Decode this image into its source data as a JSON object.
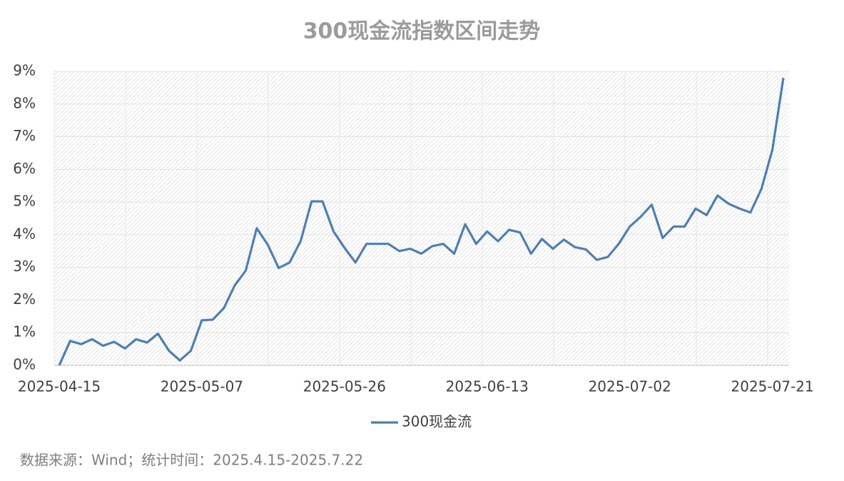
{
  "chart_data": {
    "type": "line",
    "title": "300现金流指数区间走势",
    "categories": [
      "2025-04-15",
      null,
      null,
      null,
      null,
      null,
      null,
      null,
      null,
      null,
      null,
      null,
      null,
      "2025-05-07",
      null,
      null,
      null,
      null,
      null,
      null,
      null,
      null,
      null,
      null,
      null,
      null,
      "2025-05-26",
      null,
      null,
      null,
      null,
      null,
      null,
      null,
      null,
      null,
      null,
      null,
      null,
      "2025-06-13",
      null,
      null,
      null,
      null,
      null,
      null,
      null,
      null,
      null,
      null,
      null,
      null,
      "2025-07-02",
      null,
      null,
      null,
      null,
      null,
      null,
      null,
      null,
      null,
      null,
      null,
      null,
      "2025-07-21",
      null
    ],
    "series": [
      {
        "name": "300现金流",
        "color": "#4e7fb3",
        "values": [
          0,
          0.75,
          0.65,
          0.8,
          0.6,
          0.72,
          0.52,
          0.8,
          0.7,
          0.97,
          0.45,
          0.15,
          0.45,
          1.38,
          1.4,
          1.75,
          2.45,
          2.9,
          4.2,
          3.7,
          2.98,
          3.15,
          3.8,
          5.02,
          5.02,
          4.1,
          3.6,
          3.15,
          3.72,
          3.72,
          3.72,
          3.5,
          3.57,
          3.42,
          3.65,
          3.72,
          3.42,
          4.32,
          3.72,
          4.1,
          3.8,
          4.15,
          4.07,
          3.42,
          3.87,
          3.57,
          3.85,
          3.62,
          3.55,
          3.23,
          3.32,
          3.72,
          4.25,
          4.55,
          4.92,
          3.9,
          4.25,
          4.25,
          4.8,
          4.6,
          5.2,
          4.95,
          4.8,
          4.68,
          5.4,
          6.6,
          8.8
        ]
      }
    ],
    "ylim": [
      0,
      9
    ],
    "yticks": [
      {
        "value": 0,
        "label": "0%"
      },
      {
        "value": 1,
        "label": "1%"
      },
      {
        "value": 2,
        "label": "2%"
      },
      {
        "value": 3,
        "label": "3%"
      },
      {
        "value": 4,
        "label": "4%"
      },
      {
        "value": 5,
        "label": "5%"
      },
      {
        "value": 6,
        "label": "6%"
      },
      {
        "value": 7,
        "label": "7%"
      },
      {
        "value": 8,
        "label": "8%"
      },
      {
        "value": 9,
        "label": "9%"
      }
    ],
    "grid": true,
    "legend": "bottom",
    "note": "数据来源：Wind；统计时间：2025.4.15-2025.7.22"
  }
}
